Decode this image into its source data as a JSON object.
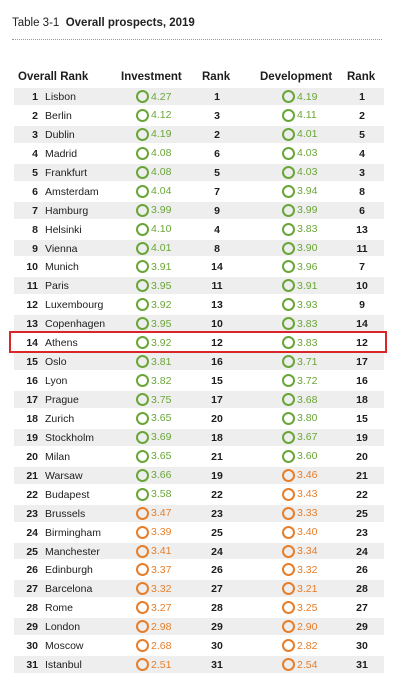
{
  "caption": {
    "label": "Table 3-1",
    "title": "Overall prospects, 2019"
  },
  "headers": {
    "overall_rank": "Overall Rank",
    "investment": "Investment",
    "inv_rank": "Rank",
    "development": "Development",
    "dev_rank": "Rank"
  },
  "colors": {
    "green": "#6aa637",
    "orange": "#e67e2a",
    "highlight": "#d9262b"
  },
  "highlighted_row": "14",
  "rows": [
    {
      "rank": "1",
      "city": "Lisbon",
      "inv": "4.27",
      "inv_color": "green",
      "irank": "1",
      "dev": "4.19",
      "dev_color": "green",
      "drank": "1"
    },
    {
      "rank": "2",
      "city": "Berlin",
      "inv": "4.12",
      "inv_color": "green",
      "irank": "3",
      "dev": "4.11",
      "dev_color": "green",
      "drank": "2"
    },
    {
      "rank": "3",
      "city": "Dublin",
      "inv": "4.19",
      "inv_color": "green",
      "irank": "2",
      "dev": "4.01",
      "dev_color": "green",
      "drank": "5"
    },
    {
      "rank": "4",
      "city": "Madrid",
      "inv": "4.08",
      "inv_color": "green",
      "irank": "6",
      "dev": "4.03",
      "dev_color": "green",
      "drank": "4"
    },
    {
      "rank": "5",
      "city": "Frankfurt",
      "inv": "4.08",
      "inv_color": "green",
      "irank": "5",
      "dev": "4.03",
      "dev_color": "green",
      "drank": "3"
    },
    {
      "rank": "6",
      "city": "Amsterdam",
      "inv": "4.04",
      "inv_color": "green",
      "irank": "7",
      "dev": "3.94",
      "dev_color": "green",
      "drank": "8"
    },
    {
      "rank": "7",
      "city": "Hamburg",
      "inv": "3.99",
      "inv_color": "green",
      "irank": "9",
      "dev": "3.99",
      "dev_color": "green",
      "drank": "6"
    },
    {
      "rank": "8",
      "city": "Helsinki",
      "inv": "4.10",
      "inv_color": "green",
      "irank": "4",
      "dev": "3.83",
      "dev_color": "green",
      "drank": "13"
    },
    {
      "rank": "9",
      "city": "Vienna",
      "inv": "4.01",
      "inv_color": "green",
      "irank": "8",
      "dev": "3.90",
      "dev_color": "green",
      "drank": "11"
    },
    {
      "rank": "10",
      "city": "Munich",
      "inv": "3.91",
      "inv_color": "green",
      "irank": "14",
      "dev": "3.96",
      "dev_color": "green",
      "drank": "7"
    },
    {
      "rank": "11",
      "city": "Paris",
      "inv": "3.95",
      "inv_color": "green",
      "irank": "11",
      "dev": "3.91",
      "dev_color": "green",
      "drank": "10"
    },
    {
      "rank": "12",
      "city": "Luxembourg",
      "inv": "3.92",
      "inv_color": "green",
      "irank": "13",
      "dev": "3.93",
      "dev_color": "green",
      "drank": "9"
    },
    {
      "rank": "13",
      "city": "Copenhagen",
      "inv": "3.95",
      "inv_color": "green",
      "irank": "10",
      "dev": "3.83",
      "dev_color": "green",
      "drank": "14"
    },
    {
      "rank": "14",
      "city": "Athens",
      "inv": "3.92",
      "inv_color": "green",
      "irank": "12",
      "dev": "3.83",
      "dev_color": "green",
      "drank": "12"
    },
    {
      "rank": "15",
      "city": "Oslo",
      "inv": "3.81",
      "inv_color": "green",
      "irank": "16",
      "dev": "3.71",
      "dev_color": "green",
      "drank": "17"
    },
    {
      "rank": "16",
      "city": "Lyon",
      "inv": "3.82",
      "inv_color": "green",
      "irank": "15",
      "dev": "3.72",
      "dev_color": "green",
      "drank": "16"
    },
    {
      "rank": "17",
      "city": "Prague",
      "inv": "3.75",
      "inv_color": "green",
      "irank": "17",
      "dev": "3.68",
      "dev_color": "green",
      "drank": "18"
    },
    {
      "rank": "18",
      "city": "Zurich",
      "inv": "3.65",
      "inv_color": "green",
      "irank": "20",
      "dev": "3.80",
      "dev_color": "green",
      "drank": "15"
    },
    {
      "rank": "19",
      "city": "Stockholm",
      "inv": "3.69",
      "inv_color": "green",
      "irank": "18",
      "dev": "3.67",
      "dev_color": "green",
      "drank": "19"
    },
    {
      "rank": "20",
      "city": "Milan",
      "inv": "3.65",
      "inv_color": "green",
      "irank": "21",
      "dev": "3.60",
      "dev_color": "green",
      "drank": "20"
    },
    {
      "rank": "21",
      "city": "Warsaw",
      "inv": "3.66",
      "inv_color": "green",
      "irank": "19",
      "dev": "3.46",
      "dev_color": "orange",
      "drank": "21"
    },
    {
      "rank": "22",
      "city": "Budapest",
      "inv": "3.58",
      "inv_color": "green",
      "irank": "22",
      "dev": "3.43",
      "dev_color": "orange",
      "drank": "22"
    },
    {
      "rank": "23",
      "city": "Brussels",
      "inv": "3.47",
      "inv_color": "orange",
      "irank": "23",
      "dev": "3.33",
      "dev_color": "orange",
      "drank": "25"
    },
    {
      "rank": "24",
      "city": "Birmingham",
      "inv": "3.39",
      "inv_color": "orange",
      "irank": "25",
      "dev": "3.40",
      "dev_color": "orange",
      "drank": "23"
    },
    {
      "rank": "25",
      "city": "Manchester",
      "inv": "3.41",
      "inv_color": "orange",
      "irank": "24",
      "dev": "3.34",
      "dev_color": "orange",
      "drank": "24"
    },
    {
      "rank": "26",
      "city": "Edinburgh",
      "inv": "3.37",
      "inv_color": "orange",
      "irank": "26",
      "dev": "3.32",
      "dev_color": "orange",
      "drank": "26"
    },
    {
      "rank": "27",
      "city": "Barcelona",
      "inv": "3.32",
      "inv_color": "orange",
      "irank": "27",
      "dev": "3.21",
      "dev_color": "orange",
      "drank": "28"
    },
    {
      "rank": "28",
      "city": "Rome",
      "inv": "3.27",
      "inv_color": "orange",
      "irank": "28",
      "dev": "3.25",
      "dev_color": "orange",
      "drank": "27"
    },
    {
      "rank": "29",
      "city": "London",
      "inv": "2.98",
      "inv_color": "orange",
      "irank": "29",
      "dev": "2.90",
      "dev_color": "orange",
      "drank": "29"
    },
    {
      "rank": "30",
      "city": "Moscow",
      "inv": "2.68",
      "inv_color": "orange",
      "irank": "30",
      "dev": "2.82",
      "dev_color": "orange",
      "drank": "30"
    },
    {
      "rank": "31",
      "city": "Istanbul",
      "inv": "2.51",
      "inv_color": "orange",
      "irank": "31",
      "dev": "2.54",
      "dev_color": "orange",
      "drank": "31"
    }
  ]
}
